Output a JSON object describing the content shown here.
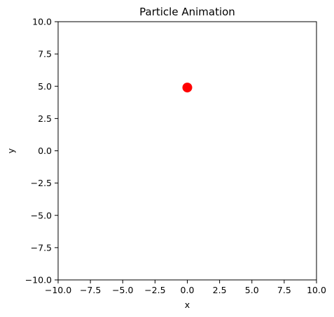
{
  "chart_data": {
    "type": "scatter",
    "title": "Particle Animation",
    "xlabel": "x",
    "ylabel": "y",
    "xlim": [
      -10,
      10
    ],
    "ylim": [
      -10,
      10
    ],
    "grid": false,
    "x_ticks": [
      -10,
      -7.5,
      -5,
      -2.5,
      0,
      2.5,
      5,
      7.5,
      10
    ],
    "y_ticks": [
      -10,
      -7.5,
      -5,
      -2.5,
      0,
      2.5,
      5,
      7.5,
      10
    ],
    "x_tick_labels": [
      "−10.0",
      "−7.5",
      "−5.0",
      "−2.5",
      "0.0",
      "2.5",
      "5.0",
      "7.5",
      "10.0"
    ],
    "y_tick_labels": [
      "−10.0",
      "−7.5",
      "−5.0",
      "−2.5",
      "0.0",
      "2.5",
      "5.0",
      "7.5",
      "10.0"
    ],
    "points": [
      {
        "x": 0.0,
        "y": 4.9
      }
    ],
    "marker_color": "#ff0000"
  }
}
